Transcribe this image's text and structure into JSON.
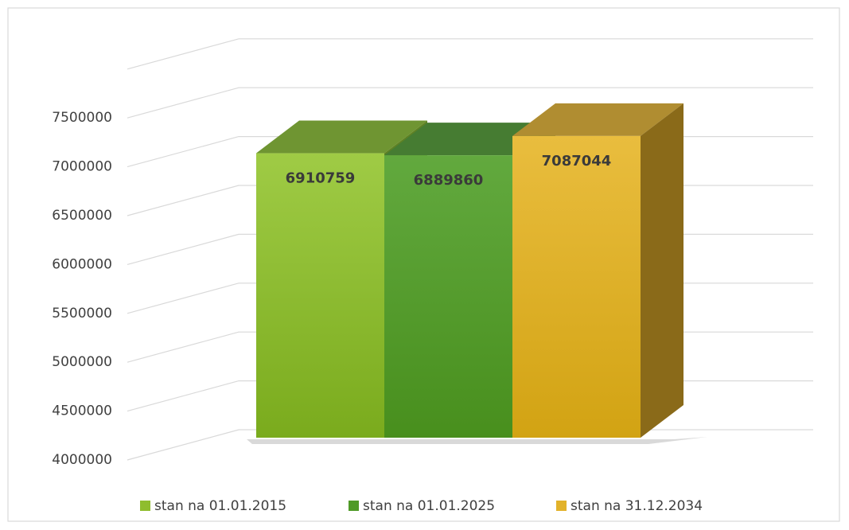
{
  "chart_data": {
    "type": "bar",
    "series": [
      {
        "name": "stan na 01.01.2015",
        "color": "#8fbd2e",
        "values": [
          6910759
        ]
      },
      {
        "name": "stan na 01.01.2025",
        "color": "#4f9a27",
        "values": [
          6889860
        ]
      },
      {
        "name": "stan na 31.12.2034",
        "color": "#e2b22a",
        "values": [
          7087044
        ]
      }
    ],
    "ylim": [
      4000000,
      8000000
    ],
    "yticks": [
      4000000,
      4500000,
      5000000,
      5500000,
      6000000,
      6500000,
      7000000,
      7500000
    ],
    "grid": true
  }
}
